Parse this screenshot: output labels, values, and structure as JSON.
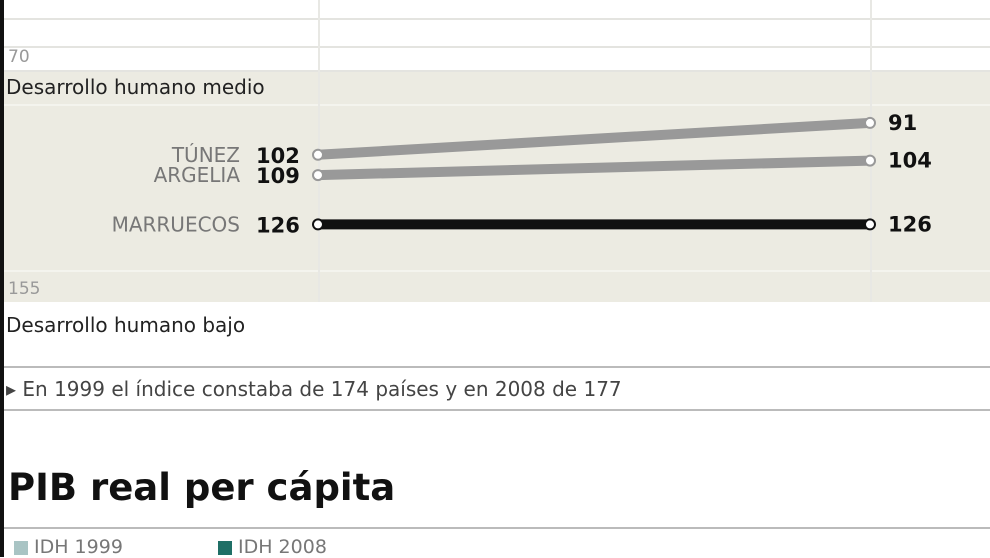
{
  "chart_data": {
    "type": "slope",
    "y_axis": {
      "reversed": true,
      "ticks": [
        "70",
        "155"
      ]
    },
    "bands": {
      "top": "Desarrollo humano medio",
      "bottom": "Desarrollo humano bajo"
    },
    "series": [
      {
        "name": "TÚNEZ",
        "start": 102,
        "end": 91,
        "color": "#999999"
      },
      {
        "name": "ARGELIA",
        "start": 109,
        "end": 104,
        "color": "#999999"
      },
      {
        "name": "MARRUECOS",
        "start": 126,
        "end": 126,
        "color": "#111111"
      }
    ],
    "start_labels": [
      "102",
      "109",
      "126"
    ],
    "end_labels": [
      "91",
      "104",
      "126"
    ]
  },
  "footnote": "En 1999 el índice constaba de 174 países y en 2008 de 177",
  "section_title": "PIB real per cápita",
  "legend": [
    {
      "label": "IDH 1999",
      "color": "#a9c4c4"
    },
    {
      "label": "IDH 2008",
      "color": "#1f6f66"
    }
  ]
}
